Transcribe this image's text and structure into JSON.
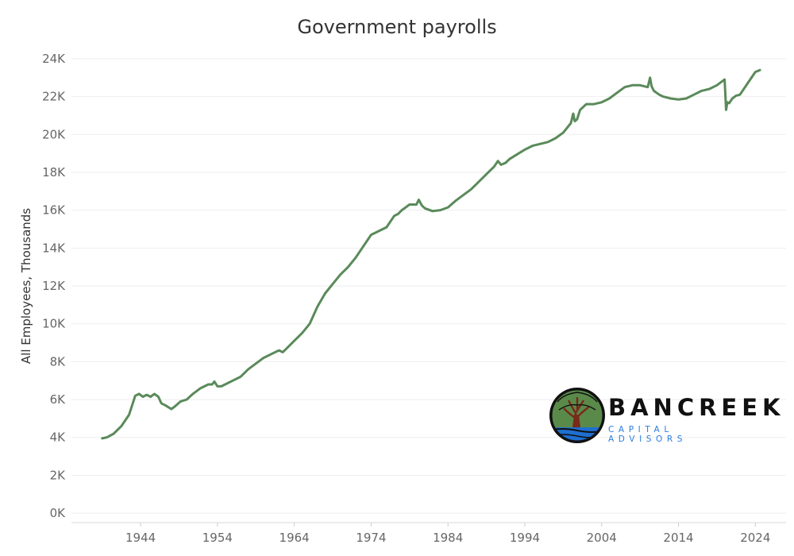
{
  "chart_data": {
    "type": "line",
    "title": "Government payrolls",
    "xlabel": "",
    "ylabel": "All Employees, Thousands",
    "xlim": [
      1935,
      2028
    ],
    "ylim": [
      -500,
      24500
    ],
    "x_ticks": [
      1944,
      1954,
      1964,
      1974,
      1984,
      1994,
      2004,
      2014,
      2024
    ],
    "y_ticks": [
      0,
      2000,
      4000,
      6000,
      8000,
      10000,
      12000,
      14000,
      16000,
      18000,
      20000,
      22000,
      24000
    ],
    "y_tick_labels": [
      "0K",
      "2K",
      "4K",
      "6K",
      "8K",
      "10K",
      "12K",
      "14K",
      "16K",
      "18K",
      "20K",
      "22K",
      "24K"
    ],
    "grid": true,
    "series": [
      {
        "color": "#5a8a5a",
        "x": [
          1939.0,
          1939.6,
          1940.5,
          1941.5,
          1942.5,
          1943.3,
          1943.8,
          1944.3,
          1944.8,
          1945.3,
          1945.8,
          1946.3,
          1946.7,
          1947.2,
          1948.0,
          1948.5,
          1949.2,
          1950.0,
          1950.8,
          1951.8,
          1952.8,
          1953.3,
          1953.6,
          1954.0,
          1954.5,
          1955.0,
          1956.0,
          1957.0,
          1958.0,
          1959.0,
          1960.0,
          1961.0,
          1962.0,
          1962.5,
          1963.0,
          1964.0,
          1965.0,
          1966.0,
          1967.0,
          1968.0,
          1969.0,
          1970.0,
          1971.0,
          1972.0,
          1973.0,
          1974.0,
          1975.0,
          1976.0,
          1977.0,
          1977.5,
          1978.0,
          1979.0,
          1979.9,
          1980.2,
          1980.6,
          1981.0,
          1982.0,
          1983.0,
          1984.0,
          1985.0,
          1986.0,
          1987.0,
          1988.0,
          1989.0,
          1990.0,
          1990.5,
          1990.9,
          1991.5,
          1992.0,
          1993.0,
          1994.0,
          1995.0,
          1996.0,
          1997.0,
          1998.0,
          1999.0,
          2000.0,
          2000.3,
          2000.5,
          2000.8,
          2001.2,
          2002.0,
          2003.0,
          2004.0,
          2005.0,
          2006.0,
          2007.0,
          2008.0,
          2009.0,
          2010.0,
          2010.3,
          2010.5,
          2010.8,
          2011.5,
          2012.0,
          2013.0,
          2014.0,
          2015.0,
          2016.0,
          2017.0,
          2018.0,
          2019.0,
          2020.0,
          2020.2,
          2020.35,
          2020.6,
          2021.0,
          2021.5,
          2022.0,
          2023.0,
          2024.0,
          2024.6
        ],
        "y": [
          3950,
          4000,
          4200,
          4600,
          5200,
          6200,
          6300,
          6150,
          6250,
          6150,
          6300,
          6150,
          5800,
          5700,
          5500,
          5650,
          5900,
          6000,
          6300,
          6600,
          6800,
          6800,
          6950,
          6700,
          6700,
          6800,
          7000,
          7200,
          7600,
          7900,
          8200,
          8400,
          8600,
          8500,
          8700,
          9100,
          9500,
          10000,
          10900,
          11600,
          12100,
          12600,
          13000,
          13500,
          14100,
          14700,
          14900,
          15100,
          15700,
          15800,
          16000,
          16300,
          16300,
          16550,
          16250,
          16100,
          15950,
          16000,
          16150,
          16500,
          16800,
          17100,
          17500,
          17900,
          18300,
          18600,
          18400,
          18500,
          18700,
          18950,
          19200,
          19400,
          19500,
          19600,
          19800,
          20100,
          20600,
          21100,
          20700,
          20800,
          21300,
          21600,
          21600,
          21700,
          21900,
          22200,
          22500,
          22600,
          22600,
          22500,
          23000,
          22550,
          22300,
          22100,
          22000,
          21900,
          21850,
          21900,
          22100,
          22300,
          22400,
          22600,
          22900,
          21300,
          21700,
          21650,
          21900,
          22050,
          22100,
          22700,
          23300,
          23400
        ]
      }
    ]
  },
  "logo": {
    "name": "BANCREEK",
    "subtitle": "CAPITAL ADVISORS",
    "colors": {
      "tree": "#5a8a4a",
      "trunk": "#7a2a1a",
      "water": "#1e6fd0",
      "ring": "#111111"
    }
  }
}
